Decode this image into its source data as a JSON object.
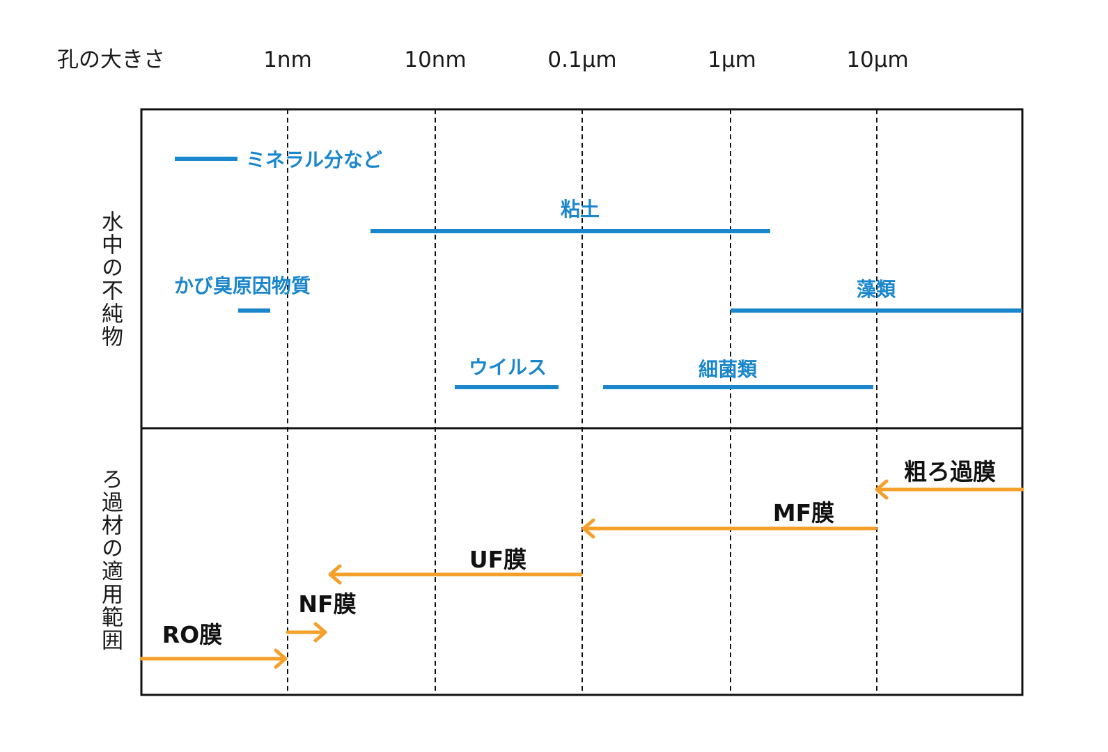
{
  "header": {
    "pore_size_label": "孔の大きさ",
    "ticks": [
      "1nm",
      "10nm",
      "0.1μm",
      "1μm",
      "10μm"
    ]
  },
  "sections": {
    "impurities_label": "水中の不純物",
    "filter_label": "ろ過材の適用範囲"
  },
  "colors": {
    "impurity_line": "#1a86cc",
    "filter_arrow": "#f4a02a",
    "frame": "#111111"
  },
  "impurities": [
    {
      "label": "ミネラル分など",
      "from": 0.1,
      "to": 0.4
    },
    {
      "label": "粘土",
      "from": 3,
      "to": 1800
    },
    {
      "label": "かび臭原因物質",
      "from": 0.7,
      "to": 0.8
    },
    {
      "label": "藻類",
      "from": 1000,
      "to": 100000
    },
    {
      "label": "ウイルス",
      "from": 14,
      "to": 70
    },
    {
      "label": "細菌類",
      "from": 140,
      "to": 10000
    }
  ],
  "filters": [
    {
      "label": "粗ろ過膜",
      "range": [
        10000,
        100000
      ]
    },
    {
      "label": "MF膜",
      "range": [
        100,
        10000
      ]
    },
    {
      "label": "UF膜",
      "range": [
        1.3,
        100
      ]
    },
    {
      "label": "NF膜",
      "range": [
        1,
        1.8
      ]
    },
    {
      "label": "RO膜",
      "range": [
        0.1,
        1
      ]
    }
  ]
}
